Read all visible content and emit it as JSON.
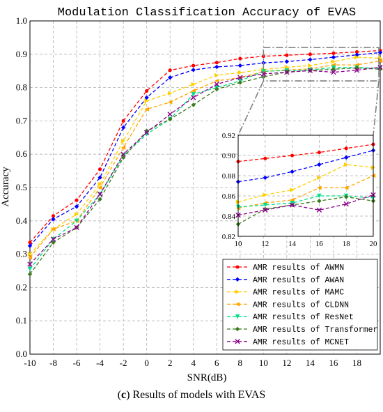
{
  "caption": {
    "label": "c",
    "text": " Results of models with EVAS"
  },
  "chart_data": {
    "type": "line",
    "title": "Modulation Classification Accuracy of EVAS",
    "xlabel": "SNR(dB)",
    "ylabel": "Accuracy",
    "xlim": [
      -10,
      20
    ],
    "ylim": [
      0.0,
      1.0
    ],
    "xticks": [
      -10,
      -8,
      -6,
      -4,
      -2,
      0,
      2,
      4,
      6,
      8,
      10,
      12,
      14,
      16,
      18
    ],
    "yticks": [
      0.0,
      0.1,
      0.2,
      0.3,
      0.4,
      0.5,
      0.6,
      0.7,
      0.8,
      0.9,
      1.0
    ],
    "grid": true,
    "legend_position": "bottom-right",
    "x": [
      -10,
      -8,
      -6,
      -4,
      -2,
      0,
      2,
      4,
      6,
      8,
      10,
      12,
      14,
      16,
      18,
      20
    ],
    "series": [
      {
        "name": "AMR results of AWMN",
        "color": "#ff0000",
        "marker": "circle",
        "values": [
          0.335,
          0.415,
          0.462,
          0.555,
          0.7,
          0.79,
          0.852,
          0.866,
          0.875,
          0.887,
          0.894,
          0.897,
          0.9,
          0.903,
          0.907,
          0.911
        ]
      },
      {
        "name": "AMR results of AWAN",
        "color": "#0000ff",
        "marker": "diamond",
        "values": [
          0.325,
          0.405,
          0.443,
          0.53,
          0.68,
          0.77,
          0.83,
          0.853,
          0.862,
          0.866,
          0.874,
          0.878,
          0.884,
          0.891,
          0.898,
          0.905
        ]
      },
      {
        "name": "AMR results of MAMC",
        "color": "#ffd000",
        "marker": "triangle-right",
        "values": [
          0.3,
          0.375,
          0.42,
          0.51,
          0.64,
          0.76,
          0.783,
          0.81,
          0.837,
          0.845,
          0.854,
          0.861,
          0.866,
          0.878,
          0.891,
          0.888
        ]
      },
      {
        "name": "AMR results of CLDNN",
        "color": "#ffa500",
        "marker": "triangle-left",
        "values": [
          0.29,
          0.375,
          0.4,
          0.5,
          0.62,
          0.735,
          0.756,
          0.79,
          0.82,
          0.83,
          0.848,
          0.853,
          0.856,
          0.868,
          0.868,
          0.88
        ]
      },
      {
        "name": "AMR results of ResNet",
        "color": "#00dd88",
        "marker": "triangle-down",
        "values": [
          0.255,
          0.345,
          0.4,
          0.48,
          0.595,
          0.66,
          0.705,
          0.78,
          0.8,
          0.82,
          0.849,
          0.851,
          0.853,
          0.86,
          0.86,
          0.858
        ]
      },
      {
        "name": "AMR results of Transformer",
        "color": "#3b7a1f",
        "marker": "diamond",
        "values": [
          0.24,
          0.335,
          0.38,
          0.465,
          0.59,
          0.67,
          0.705,
          0.748,
          0.795,
          0.815,
          0.832,
          0.847,
          0.851,
          0.855,
          0.859,
          0.855
        ]
      },
      {
        "name": "AMR results of MCNET",
        "color": "#8b008b",
        "marker": "x",
        "values": [
          0.27,
          0.345,
          0.38,
          0.48,
          0.6,
          0.665,
          0.72,
          0.77,
          0.81,
          0.83,
          0.841,
          0.846,
          0.851,
          0.846,
          0.852,
          0.861
        ]
      }
    ],
    "inset": {
      "xlim": [
        10,
        20
      ],
      "ylim": [
        0.82,
        0.92
      ],
      "xticks": [
        10,
        12,
        14,
        16,
        18,
        20
      ],
      "yticks": [
        0.82,
        0.84,
        0.86,
        0.88,
        0.9,
        0.92
      ]
    }
  }
}
